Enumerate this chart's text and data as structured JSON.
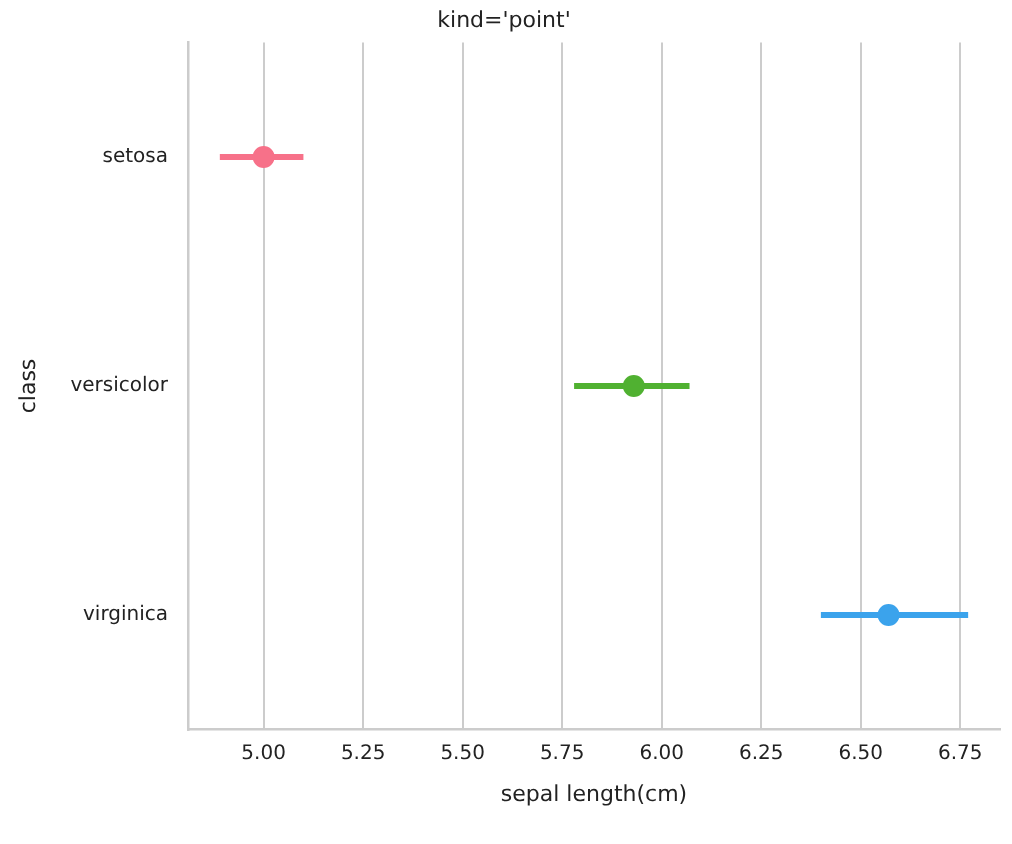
{
  "chart_data": {
    "type": "scatter",
    "orientation": "horizontal",
    "title": "kind='point'",
    "xlabel": "sepal length(cm)",
    "ylabel": "class",
    "categories": [
      "setosa",
      "versicolor",
      "virginica"
    ],
    "values": [
      5.0,
      5.93,
      6.57
    ],
    "errors": [
      [
        4.89,
        5.1
      ],
      [
        5.78,
        6.07
      ],
      [
        6.4,
        6.77
      ]
    ],
    "colors": [
      "#f77189",
      "#50b131",
      "#3ba3ec"
    ],
    "xlim": [
      4.81,
      6.85
    ],
    "xticks": [
      {
        "value": 5,
        "label": "5.00"
      },
      {
        "value": 5.25,
        "label": "5.25"
      },
      {
        "value": 5.5,
        "label": "5.50"
      },
      {
        "value": 5.75,
        "label": "5.75"
      },
      {
        "value": 6,
        "label": "6.00"
      },
      {
        "value": 6.25,
        "label": "6.25"
      },
      {
        "value": 6.5,
        "label": "6.50"
      },
      {
        "value": 6.75,
        "label": "6.75"
      }
    ],
    "grid": "x",
    "marker": "circle",
    "legend": false
  }
}
